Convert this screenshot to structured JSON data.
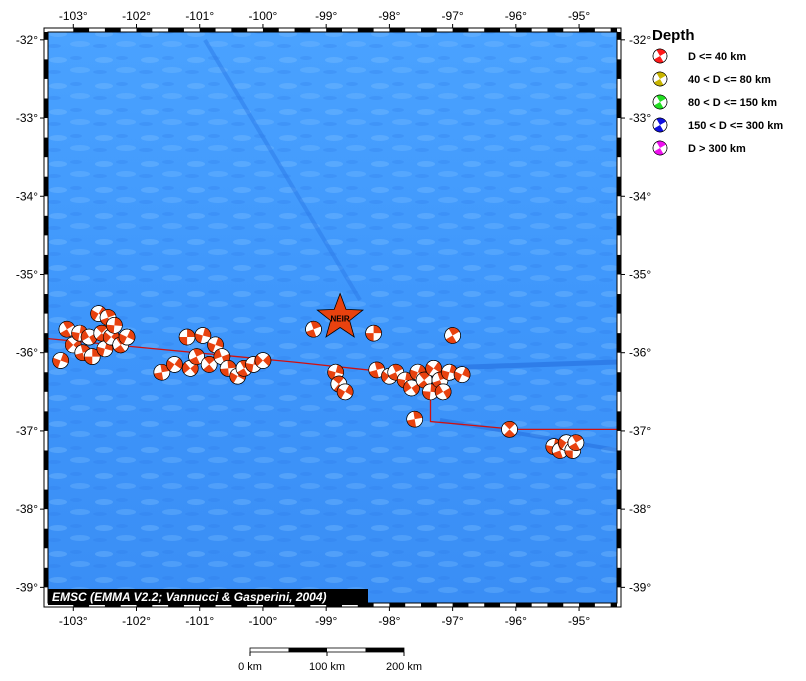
{
  "map": {
    "lon_range": [
      -103.4,
      -94.4
    ],
    "lat_range": [
      -39.2,
      -31.9
    ],
    "colors": {
      "ocean_light": "#4aa0ff",
      "ocean_dark": "#1f6cf0",
      "plate_boundary": "#d01010",
      "mechanism_shallow": "#e8420f",
      "star": "#e8420f"
    },
    "lon_ticks": [
      {
        "value": -103,
        "label": "-103°"
      },
      {
        "value": -102,
        "label": "-102°"
      },
      {
        "value": -101,
        "label": "-101°"
      },
      {
        "value": -100,
        "label": "-100°"
      },
      {
        "value": -99,
        "label": "-99°"
      },
      {
        "value": -98,
        "label": "-98°"
      },
      {
        "value": -97,
        "label": "-97°"
      },
      {
        "value": -96,
        "label": "-96°"
      },
      {
        "value": -95,
        "label": "-95°"
      }
    ],
    "lat_ticks": [
      {
        "value": -32,
        "label": "-32°"
      },
      {
        "value": -33,
        "label": "-33°"
      },
      {
        "value": -34,
        "label": "-34°"
      },
      {
        "value": -35,
        "label": "-35°"
      },
      {
        "value": -36,
        "label": "-36°"
      },
      {
        "value": -37,
        "label": "-37°"
      },
      {
        "value": -38,
        "label": "-38°"
      },
      {
        "value": -39,
        "label": "-39°"
      }
    ],
    "epicenter": {
      "lon": -98.78,
      "lat": -35.55,
      "label": "NEIR"
    },
    "plate_boundary": [
      [
        -103.4,
        -35.82
      ],
      [
        -99.5,
        -36.12
      ],
      [
        -98.0,
        -36.25
      ],
      [
        -97.35,
        -36.3
      ],
      [
        -97.35,
        -36.88
      ],
      [
        -96.0,
        -36.98
      ],
      [
        -94.4,
        -36.98
      ]
    ],
    "mechanisms": [
      {
        "lon": -103.2,
        "lat": -36.1,
        "rot": 20
      },
      {
        "lon": -103.1,
        "lat": -35.7,
        "rot": -30
      },
      {
        "lon": -103.0,
        "lat": -35.9,
        "rot": 45
      },
      {
        "lon": -102.9,
        "lat": -35.75,
        "rot": 10
      },
      {
        "lon": -102.85,
        "lat": -36.0,
        "rot": -15
      },
      {
        "lon": -102.75,
        "lat": -35.8,
        "rot": 60
      },
      {
        "lon": -102.7,
        "lat": -36.05,
        "rot": 0
      },
      {
        "lon": -102.6,
        "lat": -35.5,
        "rot": 30
      },
      {
        "lon": -102.55,
        "lat": -35.75,
        "rot": -45
      },
      {
        "lon": -102.5,
        "lat": -35.95,
        "rot": 15
      },
      {
        "lon": -102.45,
        "lat": -35.55,
        "rot": -20
      },
      {
        "lon": -102.4,
        "lat": -35.8,
        "rot": 40
      },
      {
        "lon": -102.35,
        "lat": -35.65,
        "rot": 5
      },
      {
        "lon": -102.25,
        "lat": -35.9,
        "rot": -35
      },
      {
        "lon": -102.15,
        "lat": -35.8,
        "rot": 25
      },
      {
        "lon": -101.6,
        "lat": -36.25,
        "rot": -10
      },
      {
        "lon": -101.4,
        "lat": -36.15,
        "rot": 35
      },
      {
        "lon": -101.2,
        "lat": -35.8,
        "rot": 0
      },
      {
        "lon": -101.15,
        "lat": -36.2,
        "rot": 50
      },
      {
        "lon": -101.05,
        "lat": -36.05,
        "rot": -25
      },
      {
        "lon": -100.95,
        "lat": -35.78,
        "rot": 15
      },
      {
        "lon": -100.85,
        "lat": -36.15,
        "rot": -40
      },
      {
        "lon": -100.75,
        "lat": -35.9,
        "rot": 20
      },
      {
        "lon": -100.65,
        "lat": -36.05,
        "rot": 70
      },
      {
        "lon": -100.55,
        "lat": -36.2,
        "rot": -5
      },
      {
        "lon": -100.4,
        "lat": -36.3,
        "rot": 30
      },
      {
        "lon": -100.3,
        "lat": -36.2,
        "rot": -30
      },
      {
        "lon": -100.15,
        "lat": -36.15,
        "rot": 10
      },
      {
        "lon": -100.0,
        "lat": -36.1,
        "rot": 45
      },
      {
        "lon": -99.2,
        "lat": -35.7,
        "rot": -20
      },
      {
        "lon": -98.85,
        "lat": -36.25,
        "rot": 15
      },
      {
        "lon": -98.8,
        "lat": -36.4,
        "rot": -50
      },
      {
        "lon": -98.7,
        "lat": -36.5,
        "rot": 30
      },
      {
        "lon": -98.25,
        "lat": -35.75,
        "rot": 0
      },
      {
        "lon": -98.2,
        "lat": -36.22,
        "rot": -15
      },
      {
        "lon": -98.0,
        "lat": -36.3,
        "rot": 40
      },
      {
        "lon": -97.9,
        "lat": -36.25,
        "rot": -25
      },
      {
        "lon": -97.75,
        "lat": -36.35,
        "rot": 10
      },
      {
        "lon": -97.65,
        "lat": -36.45,
        "rot": 55
      },
      {
        "lon": -97.6,
        "lat": -36.85,
        "rot": -10
      },
      {
        "lon": -97.55,
        "lat": -36.25,
        "rot": 20
      },
      {
        "lon": -97.45,
        "lat": -36.35,
        "rot": -40
      },
      {
        "lon": -97.35,
        "lat": -36.5,
        "rot": 5
      },
      {
        "lon": -97.3,
        "lat": -36.2,
        "rot": 35
      },
      {
        "lon": -97.2,
        "lat": -36.35,
        "rot": -20
      },
      {
        "lon": -97.15,
        "lat": -36.5,
        "rot": 60
      },
      {
        "lon": -97.05,
        "lat": -36.25,
        "rot": 15
      },
      {
        "lon": -97.0,
        "lat": -35.78,
        "rot": -30
      },
      {
        "lon": -96.85,
        "lat": -36.28,
        "rot": 25
      },
      {
        "lon": -96.1,
        "lat": -36.98,
        "rot": -45
      },
      {
        "lon": -95.4,
        "lat": -37.2,
        "rot": 10
      },
      {
        "lon": -95.3,
        "lat": -37.25,
        "rot": -20
      },
      {
        "lon": -95.2,
        "lat": -37.15,
        "rot": 35
      },
      {
        "lon": -95.1,
        "lat": -37.25,
        "rot": 0
      },
      {
        "lon": -95.05,
        "lat": -37.15,
        "rot": -30
      }
    ]
  },
  "legend": {
    "title": "Depth",
    "items": [
      {
        "label": "D <= 40 km",
        "color": "#ff1a1a"
      },
      {
        "label": "40 < D <= 80 km",
        "color": "#c8b400"
      },
      {
        "label": "80 < D <= 150 km",
        "color": "#22dd22"
      },
      {
        "label": "150 < D <= 300 km",
        "color": "#1010e0"
      },
      {
        "label": "D > 300 km",
        "color": "#ee10ee"
      }
    ]
  },
  "credit": "EMSC (EMMA V2.2; Vannucci & Gasperini, 2004)",
  "scalebar": {
    "ticks": [
      {
        "label": "0 km",
        "frac": 0
      },
      {
        "label": "100 km",
        "frac": 0.5
      },
      {
        "label": "200 km",
        "frac": 1
      }
    ]
  }
}
